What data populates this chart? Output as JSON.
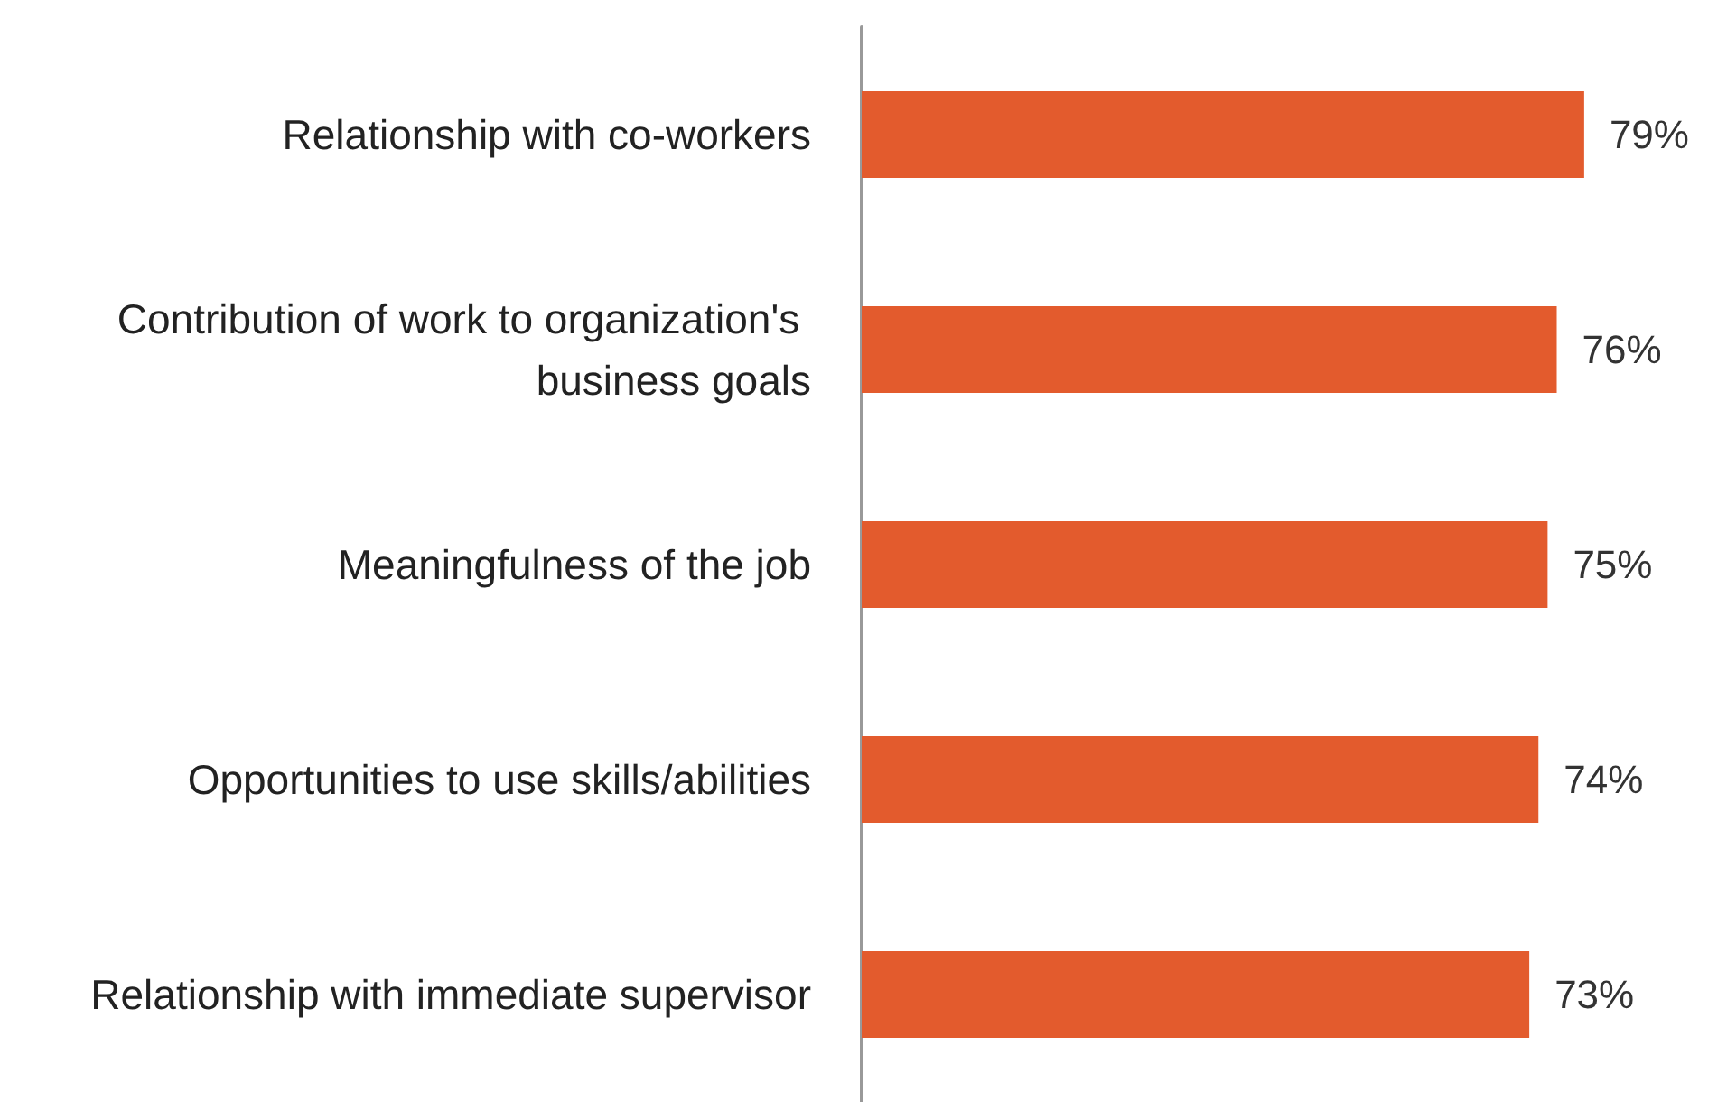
{
  "chart_data": {
    "type": "bar",
    "orientation": "horizontal",
    "categories": [
      "Relationship with co-workers",
      "Contribution of work to organization's business goals",
      "Meaningfulness of the job",
      "Opportunities to use skills/abilities",
      "Relationship with immediate supervisor"
    ],
    "values": [
      79,
      76,
      75,
      74,
      73
    ],
    "value_labels": [
      "79%",
      "76%",
      "75%",
      "74%",
      "73%"
    ],
    "color": "#e35b2d",
    "tick_labels": "y"
  }
}
